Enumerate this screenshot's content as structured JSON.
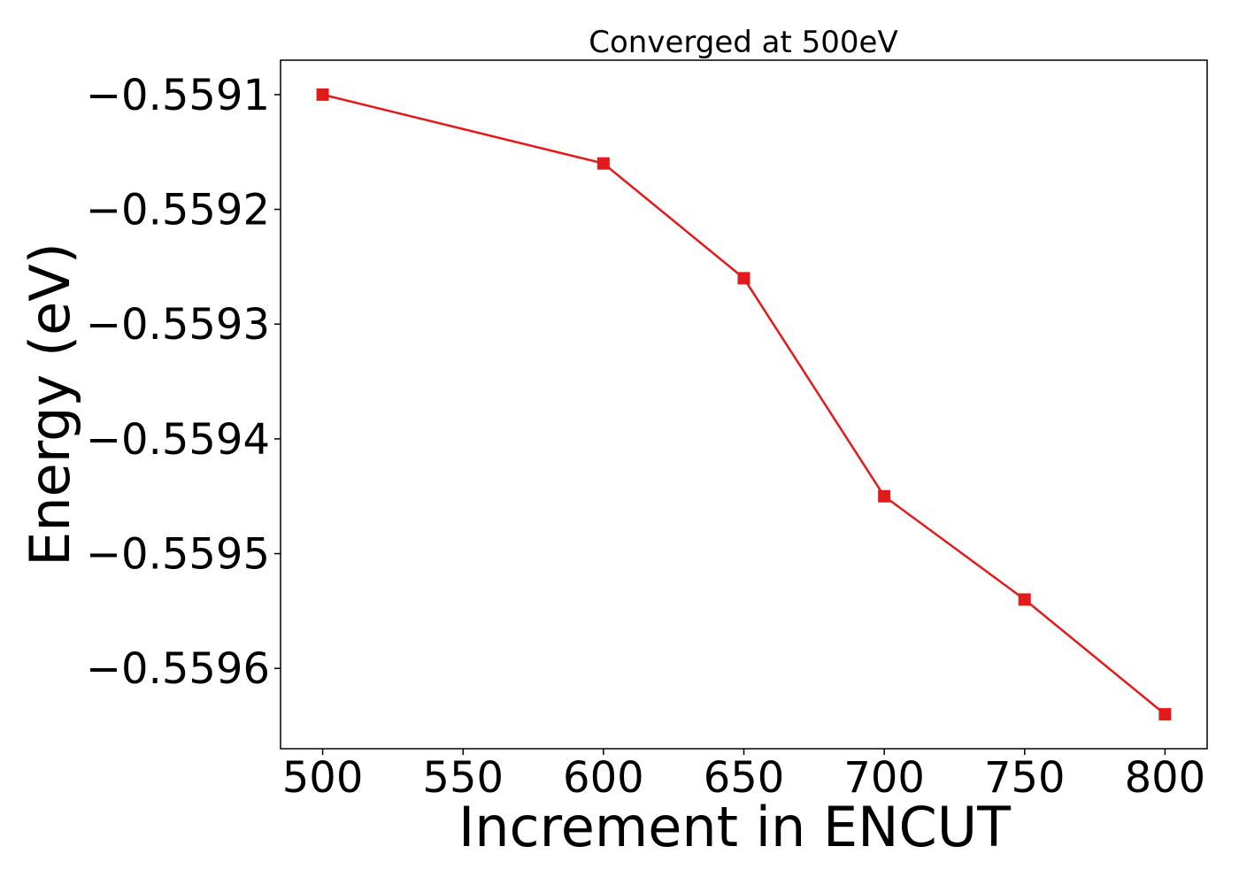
{
  "chart_data": {
    "type": "line",
    "title": "Converged at 500eV",
    "xlabel": "Increment in ENCUT",
    "ylabel": "Energy (eV)",
    "x": [
      500,
      600,
      650,
      700,
      750,
      800
    ],
    "series": [
      {
        "values": [
          -0.5591,
          -0.55916,
          -0.55926,
          -0.55945,
          -0.55954,
          -0.55964
        ],
        "color": "#e31a1c",
        "marker": "square"
      }
    ],
    "xlim": [
      485,
      815
    ],
    "ylim": [
      -0.55967,
      -0.55907
    ],
    "xticks": [
      500,
      550,
      600,
      650,
      700,
      750,
      800
    ],
    "xtick_labels": [
      "500",
      "550",
      "600",
      "650",
      "700",
      "750",
      "800"
    ],
    "yticks": [
      -0.5591,
      -0.5592,
      -0.5593,
      -0.5594,
      -0.5595,
      -0.5596
    ],
    "ytick_labels": [
      "−0.5591",
      "−0.5592",
      "−0.5593",
      "−0.5594",
      "−0.5595",
      "−0.5596"
    ],
    "grid": false,
    "legend": "none"
  }
}
